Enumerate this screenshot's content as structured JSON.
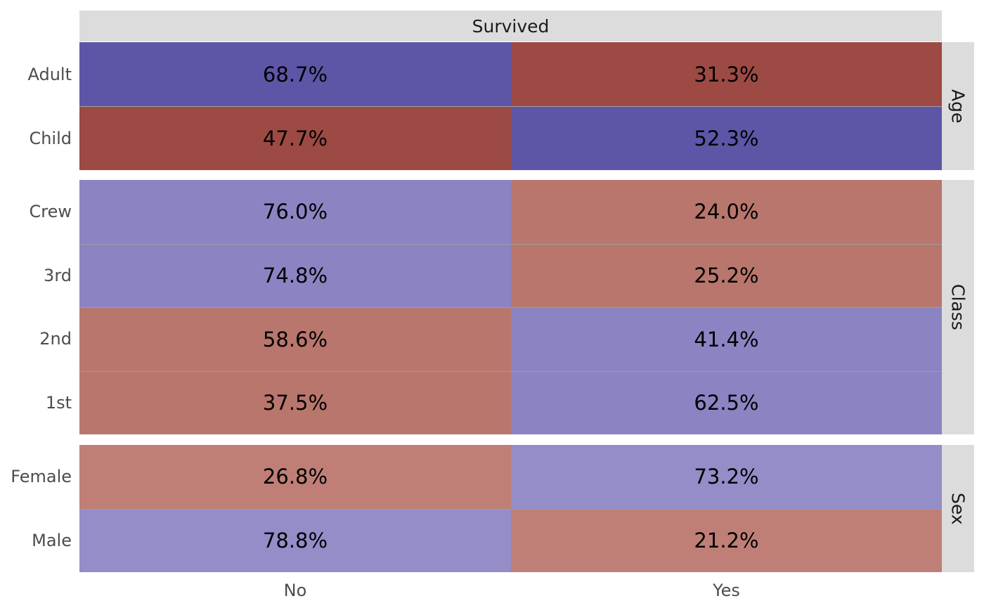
{
  "chart_data": {
    "type": "heatmap",
    "title": "Survived",
    "col_header": "Survived",
    "columns": [
      "No",
      "Yes"
    ],
    "row_groups": [
      {
        "group": "Age",
        "rows": [
          "Adult",
          "Child"
        ],
        "values": [
          [
            68.7,
            31.3
          ],
          [
            47.7,
            52.3
          ]
        ]
      },
      {
        "group": "Class",
        "rows": [
          "Crew",
          "3rd",
          "2nd",
          "1st"
        ],
        "values": [
          [
            76.0,
            24.0
          ],
          [
            74.8,
            25.2
          ],
          [
            58.6,
            41.4
          ],
          [
            37.5,
            62.5
          ]
        ]
      },
      {
        "group": "Sex",
        "rows": [
          "Female",
          "Male"
        ],
        "values": [
          [
            26.8,
            73.2
          ],
          [
            78.8,
            21.2
          ]
        ]
      }
    ],
    "values_unit": "%",
    "legend": "none",
    "layout": "faceted table, column facet strip on top, row facet strips on right"
  },
  "colors": {
    "strip_background": "#DCDCDC",
    "strip_text": "#1A1A1A",
    "axis_text": "#4D4D4D",
    "cell_text": "#000000",
    "row_separator": "#9E9E9E",
    "age_purple": "#5D56A7",
    "age_red": "#9C4A43",
    "class_purple": "#8B84C3",
    "class_rose": "#B8766D",
    "sex_purple": "#948DC8",
    "sex_rose": "#BF7F77"
  },
  "display": {
    "col_strip": "Survived",
    "x_labels": {
      "no": "No",
      "yes": "Yes"
    },
    "facets": [
      {
        "strip": "Age",
        "rows": [
          {
            "label": "Adult",
            "cells": [
              {
                "text": "68.7%",
                "bg": "#5D56A7"
              },
              {
                "text": "31.3%",
                "bg": "#9C4A43"
              }
            ]
          },
          {
            "label": "Child",
            "cells": [
              {
                "text": "47.7%",
                "bg": "#9C4A43"
              },
              {
                "text": "52.3%",
                "bg": "#5D56A7"
              }
            ]
          }
        ]
      },
      {
        "strip": "Class",
        "rows": [
          {
            "label": "Crew",
            "cells": [
              {
                "text": "76.0%",
                "bg": "#8B84C3"
              },
              {
                "text": "24.0%",
                "bg": "#B8766D"
              }
            ]
          },
          {
            "label": "3rd",
            "cells": [
              {
                "text": "74.8%",
                "bg": "#8B84C3"
              },
              {
                "text": "25.2%",
                "bg": "#B8766D"
              }
            ]
          },
          {
            "label": "2nd",
            "cells": [
              {
                "text": "58.6%",
                "bg": "#B8766D"
              },
              {
                "text": "41.4%",
                "bg": "#8B84C3"
              }
            ]
          },
          {
            "label": "1st",
            "cells": [
              {
                "text": "37.5%",
                "bg": "#B8766D"
              },
              {
                "text": "62.5%",
                "bg": "#8B84C3"
              }
            ]
          }
        ]
      },
      {
        "strip": "Sex",
        "rows": [
          {
            "label": "Female",
            "cells": [
              {
                "text": "26.8%",
                "bg": "#BF7F77"
              },
              {
                "text": "73.2%",
                "bg": "#948DC8"
              }
            ]
          },
          {
            "label": "Male",
            "cells": [
              {
                "text": "78.8%",
                "bg": "#948DC8"
              },
              {
                "text": "21.2%",
                "bg": "#BF7F77"
              }
            ]
          }
        ]
      }
    ]
  }
}
